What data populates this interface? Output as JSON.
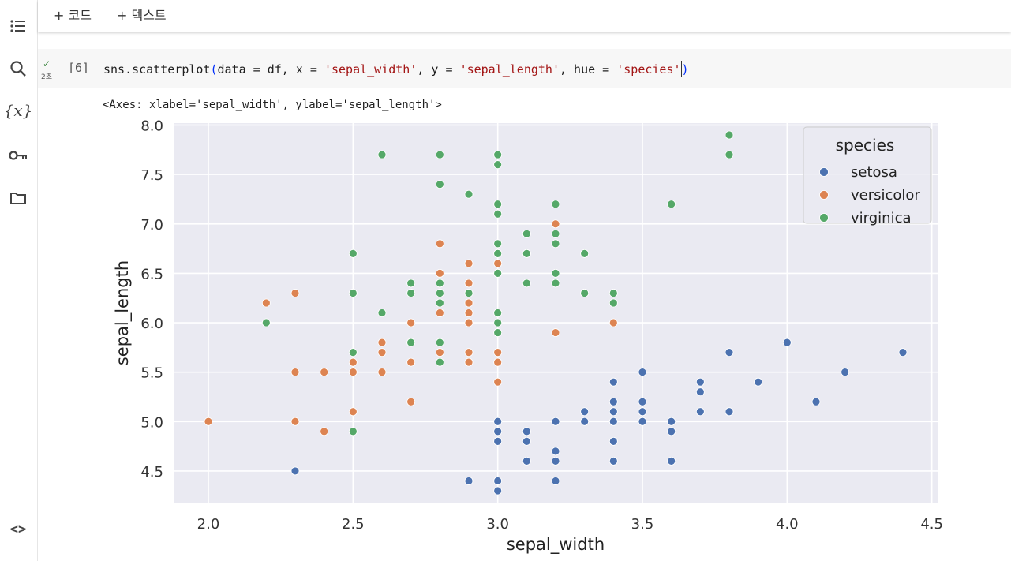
{
  "toolbar": {
    "add_code": "+ 코드",
    "add_text": "+ 텍스트"
  },
  "sidebar": {
    "items": [
      {
        "icon": "table-of-contents-icon"
      },
      {
        "icon": "search-icon"
      },
      {
        "icon": "variables-icon",
        "label": "{x}"
      },
      {
        "icon": "key-icon"
      },
      {
        "icon": "folder-icon"
      },
      {
        "icon": "code-snippets-icon",
        "label": "<>"
      }
    ]
  },
  "cell": {
    "status_check": "✓",
    "run_time": "2초",
    "exec_count": "[6]",
    "code_parts": {
      "fn": "sns.scatterplot",
      "open": "(",
      "a1": "data = df, x = ",
      "s1": "'sepal_width'",
      "a2": ", y = ",
      "s2": "'sepal_length'",
      "a3": ", hue = ",
      "s3": "'species'",
      "close": ")"
    }
  },
  "output": {
    "text": "<Axes: xlabel='sepal_width', ylabel='sepal_length'>"
  },
  "colors": {
    "setosa": "#4c72b0",
    "versicolor": "#dd8452",
    "virginica": "#55a868",
    "plot_bg": "#eaeaf2"
  },
  "chart_data": {
    "type": "scatter",
    "title": "",
    "xlabel": "sepal_width",
    "ylabel": "sepal_length",
    "xlim": [
      1.88,
      4.52
    ],
    "ylim": [
      4.18,
      8.02
    ],
    "xticks": [
      "2.0",
      "2.5",
      "3.0",
      "3.5",
      "4.0",
      "4.5"
    ],
    "yticks": [
      "4.5",
      "5.0",
      "5.5",
      "6.0",
      "6.5",
      "7.0",
      "7.5",
      "8.0"
    ],
    "grid": true,
    "legend": {
      "title": "species",
      "position": "top-right"
    },
    "series": [
      {
        "name": "setosa",
        "points": [
          [
            3.5,
            5.1
          ],
          [
            3.0,
            4.9
          ],
          [
            3.2,
            4.7
          ],
          [
            3.1,
            4.6
          ],
          [
            3.6,
            5.0
          ],
          [
            3.9,
            5.4
          ],
          [
            3.4,
            4.6
          ],
          [
            3.4,
            5.0
          ],
          [
            2.9,
            4.4
          ],
          [
            3.1,
            4.9
          ],
          [
            3.7,
            5.4
          ],
          [
            3.4,
            4.8
          ],
          [
            3.0,
            4.8
          ],
          [
            3.0,
            4.3
          ],
          [
            4.0,
            5.8
          ],
          [
            4.4,
            5.7
          ],
          [
            3.9,
            5.4
          ],
          [
            3.5,
            5.1
          ],
          [
            3.8,
            5.7
          ],
          [
            3.8,
            5.1
          ],
          [
            3.4,
            5.4
          ],
          [
            3.7,
            5.1
          ],
          [
            3.6,
            4.6
          ],
          [
            3.3,
            5.1
          ],
          [
            3.4,
            4.8
          ],
          [
            3.0,
            5.0
          ],
          [
            3.4,
            5.0
          ],
          [
            3.5,
            5.2
          ],
          [
            3.4,
            5.2
          ],
          [
            3.2,
            4.7
          ],
          [
            3.1,
            4.8
          ],
          [
            3.4,
            5.4
          ],
          [
            4.1,
            5.2
          ],
          [
            4.2,
            5.5
          ],
          [
            3.1,
            4.9
          ],
          [
            3.2,
            5.0
          ],
          [
            3.5,
            5.5
          ],
          [
            3.6,
            4.9
          ],
          [
            3.0,
            4.4
          ],
          [
            3.4,
            5.1
          ],
          [
            3.5,
            5.0
          ],
          [
            2.3,
            4.5
          ],
          [
            3.2,
            4.4
          ],
          [
            3.5,
            5.0
          ],
          [
            3.8,
            5.1
          ],
          [
            3.0,
            4.8
          ],
          [
            3.8,
            5.1
          ],
          [
            3.2,
            4.6
          ],
          [
            3.7,
            5.3
          ],
          [
            3.3,
            5.0
          ]
        ]
      },
      {
        "name": "versicolor",
        "points": [
          [
            3.2,
            7.0
          ],
          [
            3.2,
            6.4
          ],
          [
            3.1,
            6.9
          ],
          [
            2.3,
            5.5
          ],
          [
            2.8,
            6.5
          ],
          [
            2.8,
            5.7
          ],
          [
            3.3,
            6.3
          ],
          [
            2.4,
            4.9
          ],
          [
            2.9,
            6.6
          ],
          [
            2.7,
            5.2
          ],
          [
            2.0,
            5.0
          ],
          [
            3.0,
            5.9
          ],
          [
            2.2,
            6.0
          ],
          [
            2.9,
            6.1
          ],
          [
            2.9,
            5.6
          ],
          [
            3.1,
            6.7
          ],
          [
            3.0,
            5.6
          ],
          [
            2.7,
            5.8
          ],
          [
            2.2,
            6.2
          ],
          [
            2.5,
            5.6
          ],
          [
            3.2,
            5.9
          ],
          [
            2.8,
            6.1
          ],
          [
            2.5,
            6.3
          ],
          [
            2.8,
            6.1
          ],
          [
            2.9,
            6.4
          ],
          [
            3.0,
            6.6
          ],
          [
            2.8,
            6.8
          ],
          [
            3.0,
            6.7
          ],
          [
            2.9,
            6.0
          ],
          [
            2.6,
            5.7
          ],
          [
            2.4,
            5.5
          ],
          [
            2.4,
            5.5
          ],
          [
            2.7,
            5.8
          ],
          [
            2.7,
            6.0
          ],
          [
            3.0,
            5.4
          ],
          [
            3.4,
            6.0
          ],
          [
            3.1,
            6.7
          ],
          [
            2.3,
            6.3
          ],
          [
            3.0,
            5.6
          ],
          [
            2.5,
            5.5
          ],
          [
            2.6,
            5.5
          ],
          [
            3.0,
            6.1
          ],
          [
            2.6,
            5.8
          ],
          [
            2.3,
            5.0
          ],
          [
            2.7,
            5.6
          ],
          [
            3.0,
            5.7
          ],
          [
            2.9,
            5.7
          ],
          [
            2.9,
            6.2
          ],
          [
            2.5,
            5.1
          ],
          [
            2.8,
            5.7
          ]
        ]
      },
      {
        "name": "virginica",
        "points": [
          [
            3.3,
            6.3
          ],
          [
            2.7,
            5.8
          ],
          [
            3.0,
            7.1
          ],
          [
            2.9,
            6.3
          ],
          [
            3.0,
            6.5
          ],
          [
            3.0,
            7.6
          ],
          [
            2.5,
            4.9
          ],
          [
            2.9,
            7.3
          ],
          [
            2.5,
            6.7
          ],
          [
            3.6,
            7.2
          ],
          [
            3.2,
            6.5
          ],
          [
            2.7,
            6.4
          ],
          [
            3.0,
            6.8
          ],
          [
            2.5,
            5.7
          ],
          [
            2.8,
            5.8
          ],
          [
            3.2,
            6.4
          ],
          [
            3.0,
            6.5
          ],
          [
            3.8,
            7.7
          ],
          [
            2.6,
            7.7
          ],
          [
            2.2,
            6.0
          ],
          [
            3.2,
            6.9
          ],
          [
            2.8,
            5.6
          ],
          [
            2.8,
            7.7
          ],
          [
            2.7,
            6.3
          ],
          [
            3.3,
            6.7
          ],
          [
            3.2,
            7.2
          ],
          [
            2.8,
            6.2
          ],
          [
            3.0,
            6.1
          ],
          [
            2.8,
            6.4
          ],
          [
            3.0,
            7.2
          ],
          [
            2.8,
            7.4
          ],
          [
            3.8,
            7.9
          ],
          [
            2.8,
            6.4
          ],
          [
            2.8,
            6.3
          ],
          [
            2.6,
            6.1
          ],
          [
            3.0,
            7.7
          ],
          [
            3.4,
            6.3
          ],
          [
            3.1,
            6.4
          ],
          [
            3.0,
            6.0
          ],
          [
            3.1,
            6.9
          ],
          [
            3.1,
            6.7
          ],
          [
            3.1,
            6.9
          ],
          [
            2.7,
            5.8
          ],
          [
            3.2,
            6.8
          ],
          [
            3.3,
            6.7
          ],
          [
            3.0,
            6.7
          ],
          [
            2.5,
            6.3
          ],
          [
            3.0,
            6.5
          ],
          [
            3.4,
            6.2
          ],
          [
            3.0,
            5.9
          ]
        ]
      }
    ]
  }
}
